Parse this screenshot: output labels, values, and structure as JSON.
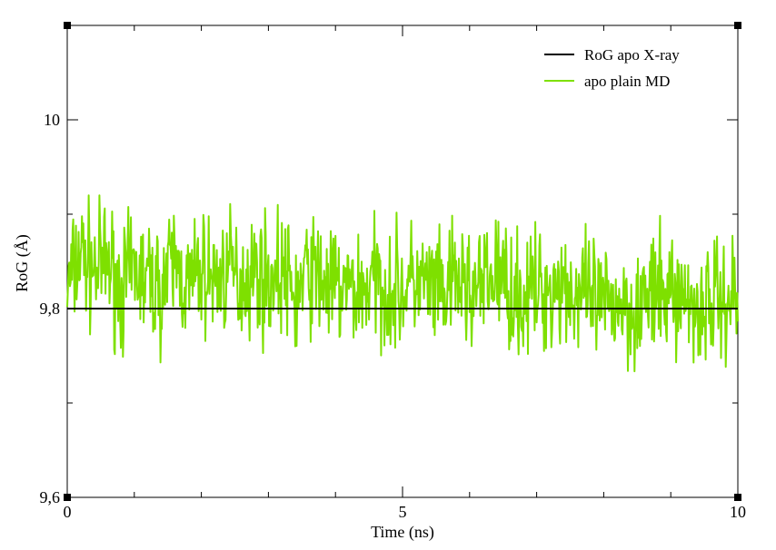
{
  "chart_data": {
    "type": "line",
    "title": "",
    "xlabel": "Time (ns)",
    "ylabel": "RoG (Å)",
    "xlim": [
      0,
      10
    ],
    "ylim": [
      9.6,
      10.1
    ],
    "x_ticks": [
      {
        "value": 0,
        "label": "0"
      },
      {
        "value": 5,
        "label": "5"
      },
      {
        "value": 10,
        "label": "10"
      }
    ],
    "x_minor_step": 1,
    "y_ticks": [
      {
        "value": 9.6,
        "label": "9,6"
      },
      {
        "value": 9.8,
        "label": "9,8"
      },
      {
        "value": 10.0,
        "label": "10"
      }
    ],
    "y_minor_step": 0.1,
    "grid": false,
    "legend_position": "top-right",
    "series": [
      {
        "name": "RoG apo X-ray",
        "color": "#000000",
        "x": [
          0,
          10
        ],
        "y": [
          9.8,
          9.8
        ]
      },
      {
        "name": "apo plain MD",
        "color": "#7ee000",
        "x": [
          0.0,
          0.2,
          0.4,
          0.6,
          0.8,
          1.0,
          1.2,
          1.4,
          1.6,
          1.8,
          2.0,
          2.2,
          2.4,
          2.6,
          2.8,
          3.0,
          3.2,
          3.4,
          3.6,
          3.8,
          4.0,
          4.2,
          4.4,
          4.6,
          4.8,
          5.0,
          5.2,
          5.4,
          5.6,
          5.8,
          6.0,
          6.2,
          6.4,
          6.6,
          6.8,
          7.0,
          7.2,
          7.4,
          7.6,
          7.8,
          8.0,
          8.2,
          8.4,
          8.6,
          8.8,
          9.0,
          9.2,
          9.4,
          9.6,
          9.8,
          10.0
        ],
        "y": [
          9.82,
          9.86,
          9.84,
          9.85,
          9.82,
          9.84,
          9.83,
          9.82,
          9.85,
          9.82,
          9.84,
          9.83,
          9.84,
          9.83,
          9.84,
          9.83,
          9.84,
          9.81,
          9.84,
          9.83,
          9.82,
          9.82,
          9.82,
          9.83,
          9.82,
          9.82,
          9.83,
          9.82,
          9.81,
          9.83,
          9.82,
          9.82,
          9.84,
          9.82,
          9.81,
          9.82,
          9.82,
          9.83,
          9.81,
          9.81,
          9.8,
          9.81,
          9.8,
          9.81,
          9.81,
          9.82,
          9.81,
          9.8,
          9.81,
          9.81,
          9.82
        ],
        "fluctuation_amplitude": 0.045
      }
    ]
  }
}
